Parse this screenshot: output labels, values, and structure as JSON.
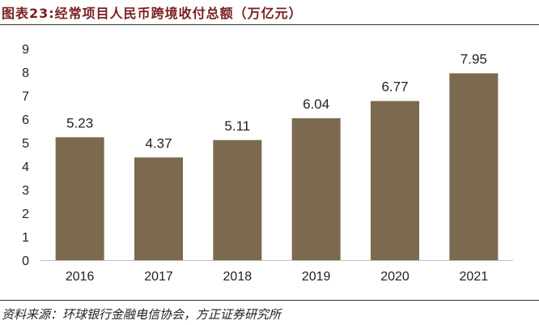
{
  "title": "图表23:经常项目人民币跨境收付总额（万亿元）",
  "source": "资料来源：环球银行金融电信协会，方正证券研究所",
  "colors": {
    "bar": "#7b6a4f",
    "axis": "#bfbfbf",
    "text": "#222222",
    "title": "#7a1f1f"
  },
  "chart_data": {
    "type": "bar",
    "categories": [
      "2016",
      "2017",
      "2018",
      "2019",
      "2020",
      "2021"
    ],
    "values": [
      5.23,
      4.37,
      5.11,
      6.04,
      6.77,
      7.95
    ],
    "data_labels": [
      "5.23",
      "4.37",
      "5.11",
      "6.04",
      "6.77",
      "7.95"
    ],
    "y_ticks": [
      "0",
      "1",
      "2",
      "3",
      "4",
      "5",
      "6",
      "7",
      "8",
      "9"
    ],
    "ylim": [
      0,
      9
    ],
    "grid": false,
    "legend": "none"
  }
}
